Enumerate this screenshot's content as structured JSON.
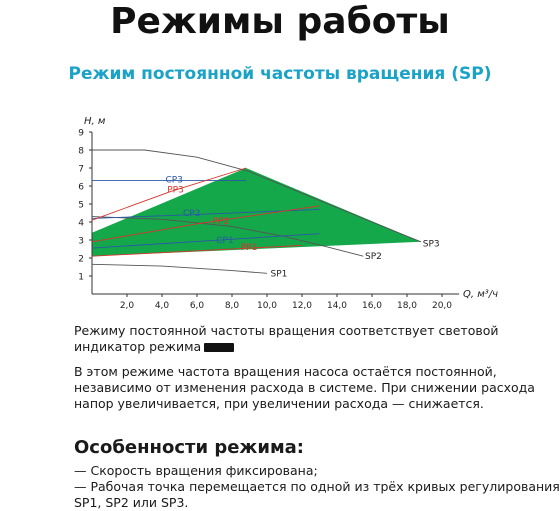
{
  "page": {
    "title": "Режимы работы",
    "subtitle": "Режим постоянной частоты вращения (SP)",
    "para1": "Режиму постоянной частоты вращения соответствует световой индикатор режима",
    "para2": "В этом режиме частота вращения насоса остаётся постоянной, независимо от изменения расхода в системе. При снижении расхода напор увеличивается, при увеличении расхода — снижается.",
    "features_heading": "Особенности режима:",
    "features": [
      "— Скорость вращения фиксирована;",
      "— Рабочая точка перемещается по одной из трёх кривых регулирования",
      "SP1, SP2 или SP3."
    ]
  },
  "colors": {
    "subtitle": "#1aa3c7",
    "area": "#14a84a",
    "cp": "#2b57a8",
    "pp": "#d8342c",
    "sp": "#555555"
  },
  "chart_data": {
    "type": "line",
    "xlabel": "Q, м³/ч",
    "ylabel": "H, м",
    "xlim": [
      0,
      22
    ],
    "ylim": [
      0,
      9
    ],
    "xticks": [
      "2,0",
      "4,0",
      "6,0",
      "8,0",
      "10,0",
      "12,0",
      "14,0",
      "16,0",
      "18,0",
      "20,0"
    ],
    "yticks": [
      "1",
      "2",
      "3",
      "4",
      "5",
      "6",
      "7",
      "8",
      "9"
    ],
    "area": [
      [
        0,
        3.4
      ],
      [
        8.8,
        7.0
      ],
      [
        18.8,
        2.9
      ],
      [
        0,
        2.1
      ]
    ],
    "series": [
      {
        "name": "SP1",
        "kind": "sp",
        "label_at": [
          10.2,
          1.15
        ],
        "points": [
          [
            0,
            1.65
          ],
          [
            4,
            1.55
          ],
          [
            8,
            1.3
          ],
          [
            10,
            1.15
          ]
        ]
      },
      {
        "name": "SP2",
        "kind": "sp",
        "label_at": [
          15.6,
          2.1
        ],
        "points": [
          [
            0,
            4.3
          ],
          [
            4,
            4.15
          ],
          [
            8,
            3.75
          ],
          [
            11,
            3.2
          ],
          [
            13.5,
            2.6
          ],
          [
            15.5,
            2.1
          ]
        ]
      },
      {
        "name": "SP3",
        "kind": "sp",
        "label_at": [
          18.9,
          2.8
        ],
        "points": [
          [
            0,
            8.0
          ],
          [
            3,
            8.0
          ],
          [
            6,
            7.6
          ],
          [
            9,
            6.8
          ],
          [
            12,
            5.6
          ],
          [
            15,
            4.4
          ],
          [
            17,
            3.6
          ],
          [
            18.8,
            2.9
          ]
        ]
      },
      {
        "name": "CP1",
        "kind": "cp",
        "label_at": [
          7.1,
          3.0
        ],
        "points": [
          [
            0,
            2.55
          ],
          [
            6.5,
            2.95
          ],
          [
            13,
            3.35
          ]
        ]
      },
      {
        "name": "CP2",
        "kind": "cp",
        "label_at": [
          5.2,
          4.5
        ],
        "points": [
          [
            0,
            4.2
          ],
          [
            5.5,
            4.4
          ],
          [
            13,
            4.7
          ]
        ]
      },
      {
        "name": "CP3",
        "kind": "cp",
        "label_at": [
          4.2,
          6.35
        ],
        "points": [
          [
            0,
            6.3
          ],
          [
            8.8,
            6.3
          ]
        ]
      },
      {
        "name": "PP1",
        "kind": "pp",
        "label_at": [
          8.5,
          2.6
        ],
        "points": [
          [
            0,
            2.1
          ],
          [
            6,
            2.4
          ],
          [
            12,
            2.7
          ]
        ]
      },
      {
        "name": "PP2",
        "kind": "pp",
        "label_at": [
          6.9,
          4.05
        ],
        "points": [
          [
            0,
            2.9
          ],
          [
            6,
            3.9
          ],
          [
            13,
            4.9
          ]
        ]
      },
      {
        "name": "PP3",
        "kind": "pp",
        "label_at": [
          4.3,
          5.8
        ],
        "points": [
          [
            0,
            4.1
          ],
          [
            4.5,
            5.7
          ],
          [
            8.8,
            7.0
          ]
        ]
      }
    ]
  }
}
